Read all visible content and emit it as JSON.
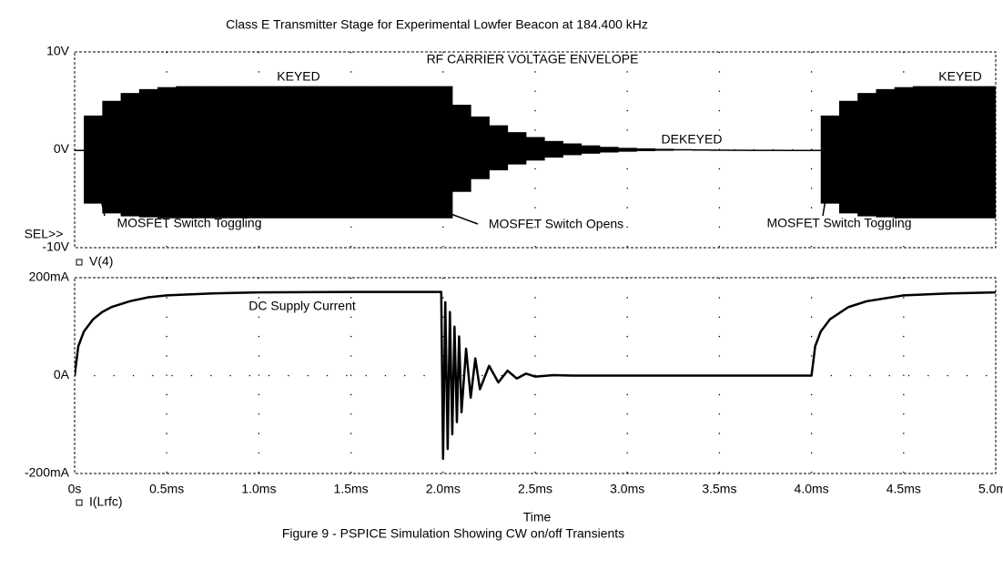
{
  "title": "Class E Transmitter Stage for Experimental Lowfer Beacon at 184.400 kHz",
  "caption": "Figure 9 - PSPICE Simulation Showing CW on/off Transients",
  "chart_data": [
    {
      "type": "envelope",
      "annotations": [
        "RF CARRIER VOLTAGE ENVELOPE",
        "KEYED",
        "KEYED",
        "DEKEYED",
        "MOSFET Switch Toggling",
        "MOSFET Switch Opens",
        "MOSFET Switch Toggling",
        "SEL>>"
      ],
      "x": [
        0,
        0.1,
        0.2,
        0.3,
        0.4,
        0.5,
        0.6,
        0.7,
        0.8,
        0.9,
        1.0,
        1.1,
        1.2,
        1.3,
        1.4,
        1.5,
        1.6,
        1.7,
        1.8,
        1.9,
        2.0,
        2.1,
        2.2,
        2.3,
        2.4,
        2.5,
        2.6,
        2.7,
        2.8,
        2.9,
        3.0,
        3.1,
        3.2,
        3.3,
        3.4,
        3.5,
        3.6,
        3.7,
        3.8,
        3.9,
        4.0,
        4.1,
        4.2,
        4.3,
        4.4,
        4.5,
        4.6,
        4.7,
        4.8,
        4.9,
        5.0
      ],
      "series": [
        {
          "name": "V(4)",
          "color": "#000000",
          "values": [
            0,
            3.5,
            5.0,
            5.8,
            6.2,
            6.4,
            6.5,
            6.5,
            6.5,
            6.5,
            6.5,
            6.5,
            6.5,
            6.5,
            6.5,
            6.5,
            6.5,
            6.5,
            6.5,
            6.5,
            6.5,
            4.6,
            3.4,
            2.5,
            1.8,
            1.3,
            0.9,
            0.65,
            0.45,
            0.3,
            0.2,
            0.15,
            0.1,
            0.07,
            0.05,
            0.03,
            0.02,
            0.01,
            0.01,
            0,
            0,
            3.5,
            5.0,
            5.8,
            6.2,
            6.4,
            6.5,
            6.5,
            6.5,
            6.5,
            6.5
          ],
          "lower": [
            0,
            -5.5,
            -6.5,
            -6.8,
            -6.9,
            -7,
            -7,
            -7,
            -7,
            -7,
            -7,
            -7,
            -7,
            -7,
            -7,
            -7,
            -7,
            -7,
            -7,
            -7,
            -7,
            -4.3,
            -3.0,
            -2.1,
            -1.5,
            -1.1,
            -0.8,
            -0.55,
            -0.4,
            -0.28,
            -0.2,
            -0.14,
            -0.1,
            -0.07,
            -0.05,
            -0.03,
            -0.02,
            -0.01,
            -0.01,
            0,
            0,
            -5.5,
            -6.5,
            -6.8,
            -6.9,
            -7,
            -7,
            -7,
            -7,
            -7,
            -7
          ]
        }
      ],
      "xlim": [
        0,
        5
      ],
      "ylim": [
        -10,
        10
      ],
      "yticks": [
        {
          "value": -10,
          "label": "-10V"
        },
        {
          "value": 0,
          "label": "0V"
        },
        {
          "value": 10,
          "label": "10V"
        }
      ],
      "grid": true
    },
    {
      "type": "line",
      "annotations": [
        "DC Supply Current"
      ],
      "x_label": "Time",
      "x": [
        0,
        0.02,
        0.05,
        0.1,
        0.15,
        0.2,
        0.3,
        0.4,
        0.5,
        0.75,
        1.0,
        1.5,
        1.99,
        2.0,
        2.012,
        2.025,
        2.037,
        2.05,
        2.062,
        2.075,
        2.087,
        2.1,
        2.125,
        2.15,
        2.175,
        2.2,
        2.25,
        2.3,
        2.35,
        2.4,
        2.45,
        2.5,
        2.6,
        2.7,
        3.0,
        3.5,
        3.99,
        4.0,
        4.02,
        4.05,
        4.1,
        4.2,
        4.3,
        4.5,
        4.75,
        5.0
      ],
      "series": [
        {
          "name": "I(Lrfc)",
          "color": "#000000",
          "values": [
            0,
            60,
            90,
            115,
            130,
            140,
            152,
            160,
            164,
            168,
            170,
            171,
            171,
            -170,
            150,
            -150,
            130,
            -120,
            100,
            -95,
            80,
            -75,
            55,
            -45,
            35,
            -28,
            20,
            -14,
            10,
            -6,
            4,
            -2,
            1,
            0,
            0,
            0,
            0,
            0,
            60,
            90,
            115,
            140,
            152,
            164,
            168,
            170
          ]
        }
      ],
      "xlim": [
        0,
        5
      ],
      "xticks": [
        {
          "value": 0,
          "label": "0s"
        },
        {
          "value": 0.5,
          "label": "0.5ms"
        },
        {
          "value": 1.0,
          "label": "1.0ms"
        },
        {
          "value": 1.5,
          "label": "1.5ms"
        },
        {
          "value": 2.0,
          "label": "2.0ms"
        },
        {
          "value": 2.5,
          "label": "2.5ms"
        },
        {
          "value": 3.0,
          "label": "3.0ms"
        },
        {
          "value": 3.5,
          "label": "3.5ms"
        },
        {
          "value": 4.0,
          "label": "4.0ms"
        },
        {
          "value": 4.5,
          "label": "4.5ms"
        },
        {
          "value": 5.0,
          "label": "5.0ms"
        }
      ],
      "ylim": [
        -200,
        200
      ],
      "yticks": [
        {
          "value": -200,
          "label": "-200mA"
        },
        {
          "value": 0,
          "label": "0A"
        },
        {
          "value": 200,
          "label": "200mA"
        }
      ],
      "grid": true
    }
  ]
}
